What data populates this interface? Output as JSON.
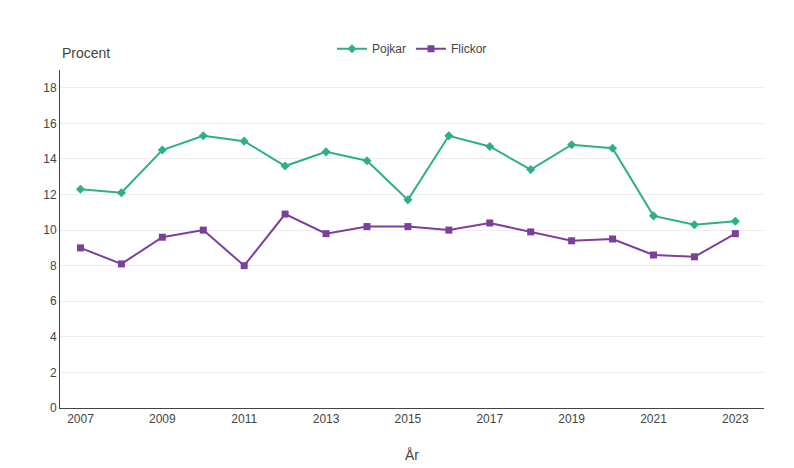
{
  "chart_data": {
    "type": "line",
    "xlabel": "År",
    "ylabel": "Procent",
    "x": [
      2007,
      2008,
      2009,
      2010,
      2011,
      2012,
      2013,
      2014,
      2015,
      2016,
      2017,
      2018,
      2019,
      2020,
      2021,
      2022,
      2023
    ],
    "series": [
      {
        "name": "Pojkar",
        "color": "#2EAF8C",
        "marker": "diamond",
        "values": [
          12.3,
          12.1,
          14.5,
          15.3,
          15.0,
          13.6,
          14.4,
          13.9,
          11.7,
          15.3,
          14.7,
          13.4,
          14.8,
          14.6,
          10.8,
          10.3,
          10.5
        ]
      },
      {
        "name": "Flickor",
        "color": "#7B3F9E",
        "marker": "square",
        "values": [
          9.0,
          8.1,
          9.6,
          10.0,
          8.0,
          10.9,
          9.8,
          10.2,
          10.2,
          10.0,
          10.4,
          9.9,
          9.4,
          9.5,
          8.6,
          8.5,
          9.8
        ]
      }
    ],
    "xlim": [
      2006.5,
      2023.7
    ],
    "xticks": [
      2007,
      2009,
      2011,
      2013,
      2015,
      2017,
      2019,
      2021,
      2023
    ],
    "ylim": [
      0,
      19
    ],
    "yticks": [
      0,
      2,
      4,
      6,
      8,
      10,
      12,
      14,
      16,
      18
    ],
    "grid": true,
    "legend": "top"
  }
}
